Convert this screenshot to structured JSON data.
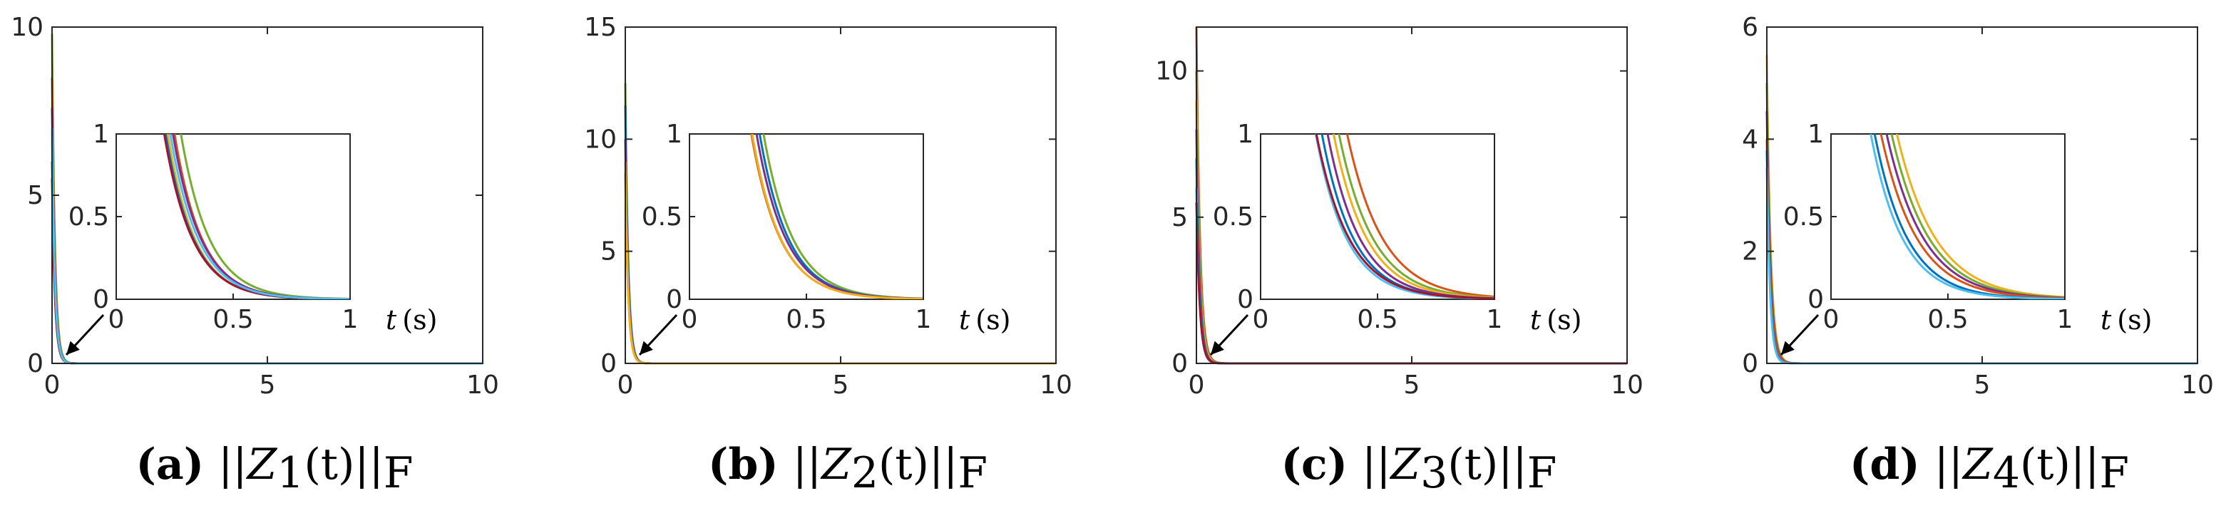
{
  "t_label": {
    "var": "t",
    "unit": "(s)"
  },
  "chart_data": [
    {
      "type": "line",
      "caption": {
        "label": "(a)",
        "pre": "||",
        "var": "Z",
        "sub": "1",
        "mid": "(t)",
        "post": "||",
        "subF": "F"
      },
      "xlim": [
        0,
        10
      ],
      "ylim": [
        0,
        10
      ],
      "xticks": [
        "0",
        "5",
        "10"
      ],
      "yticks": [
        "0",
        "5",
        "10"
      ],
      "grid": false,
      "inset": {
        "xlim": [
          0,
          1
        ],
        "ylim": [
          0,
          1
        ],
        "xticks": [
          "0",
          "0.5",
          "1"
        ],
        "yticks": [
          "0",
          "0.5",
          "1"
        ]
      },
      "series": [
        {
          "color": "#77ac30",
          "y0": 9.8,
          "decay": 15.0
        },
        {
          "color": "#d95319",
          "y0": 8.5,
          "decay": 15.6
        },
        {
          "color": "#7e2f8e",
          "y0": 7.6,
          "decay": 15.2
        },
        {
          "color": "#edb120",
          "y0": 6.8,
          "decay": 15.8
        },
        {
          "color": "#0072bd",
          "y0": 6.0,
          "decay": 15.4
        },
        {
          "color": "#a2142f",
          "y0": 5.5,
          "decay": 15.1
        },
        {
          "color": "#4dbeee",
          "y0": 7.0,
          "decay": 15.3
        }
      ]
    },
    {
      "type": "line",
      "caption": {
        "label": "(b)",
        "pre": "||",
        "var": "Z",
        "sub": "2",
        "mid": "(t)",
        "post": "||",
        "subF": "F"
      },
      "xlim": [
        0,
        10
      ],
      "ylim": [
        0,
        15
      ],
      "xticks": [
        "0",
        "5",
        "10"
      ],
      "yticks": [
        "0",
        "5",
        "10",
        "15"
      ],
      "grid": false,
      "inset": {
        "xlim": [
          0,
          1
        ],
        "ylim": [
          0,
          1
        ],
        "xticks": [
          "0",
          "0.5",
          "1"
        ],
        "yticks": [
          "0",
          "0.5",
          "1"
        ]
      },
      "series": [
        {
          "color": "#77ac30",
          "y0": 12.5,
          "decay": 14.5
        },
        {
          "color": "#0072bd",
          "y0": 11.5,
          "decay": 14.8
        },
        {
          "color": "#7e2f8e",
          "y0": 10.0,
          "decay": 14.6
        },
        {
          "color": "#d95319",
          "y0": 8.5,
          "decay": 14.7
        },
        {
          "color": "#edb120",
          "y0": 9.0,
          "decay": 14.9
        }
      ]
    },
    {
      "type": "line",
      "caption": {
        "label": "(c)",
        "pre": "||",
        "var": "Z",
        "sub": "3",
        "mid": "(t)",
        "post": "||",
        "subF": "F"
      },
      "xlim": [
        0,
        10
      ],
      "ylim": [
        0,
        11.5
      ],
      "xticks": [
        "0",
        "5",
        "10"
      ],
      "yticks": [
        "0",
        "5",
        "10"
      ],
      "grid": false,
      "inset": {
        "xlim": [
          0,
          1
        ],
        "ylim": [
          0,
          1
        ],
        "xticks": [
          "0",
          "0.5",
          "1"
        ],
        "yticks": [
          "0",
          "0.5",
          "1"
        ]
      },
      "series": [
        {
          "color": "#d95319",
          "y0": 11.5,
          "decay": 12.0
        },
        {
          "color": "#77ac30",
          "y0": 10.0,
          "decay": 12.5
        },
        {
          "color": "#edb120",
          "y0": 9.0,
          "decay": 12.8
        },
        {
          "color": "#7e2f8e",
          "y0": 8.0,
          "decay": 13.2
        },
        {
          "color": "#0072bd",
          "y0": 7.0,
          "decay": 13.5
        },
        {
          "color": "#4dbeee",
          "y0": 6.0,
          "decay": 13.8
        },
        {
          "color": "#a2142f",
          "y0": 5.5,
          "decay": 13.0
        }
      ]
    },
    {
      "type": "line",
      "caption": {
        "label": "(d)",
        "pre": "||",
        "var": "Z",
        "sub": "4",
        "mid": "(t)",
        "post": "||",
        "subF": "F"
      },
      "xlim": [
        0,
        10
      ],
      "ylim": [
        0,
        6
      ],
      "xticks": [
        "0",
        "5",
        "10"
      ],
      "yticks": [
        "0",
        "2",
        "4",
        "6"
      ],
      "grid": false,
      "inset": {
        "xlim": [
          0,
          1
        ],
        "ylim": [
          0,
          1
        ],
        "xticks": [
          "0",
          "0.5",
          "1"
        ],
        "yticks": [
          "0",
          "0.5",
          "1"
        ]
      },
      "series": [
        {
          "color": "#edb120",
          "y0": 5.5,
          "decay": 11.0
        },
        {
          "color": "#77ac30",
          "y0": 5.0,
          "decay": 11.3
        },
        {
          "color": "#7e2f8e",
          "y0": 4.5,
          "decay": 11.5
        },
        {
          "color": "#d95319",
          "y0": 4.0,
          "decay": 11.8
        },
        {
          "color": "#0072bd",
          "y0": 3.8,
          "decay": 13.0
        },
        {
          "color": "#4dbeee",
          "y0": 3.5,
          "decay": 13.4
        }
      ]
    }
  ]
}
